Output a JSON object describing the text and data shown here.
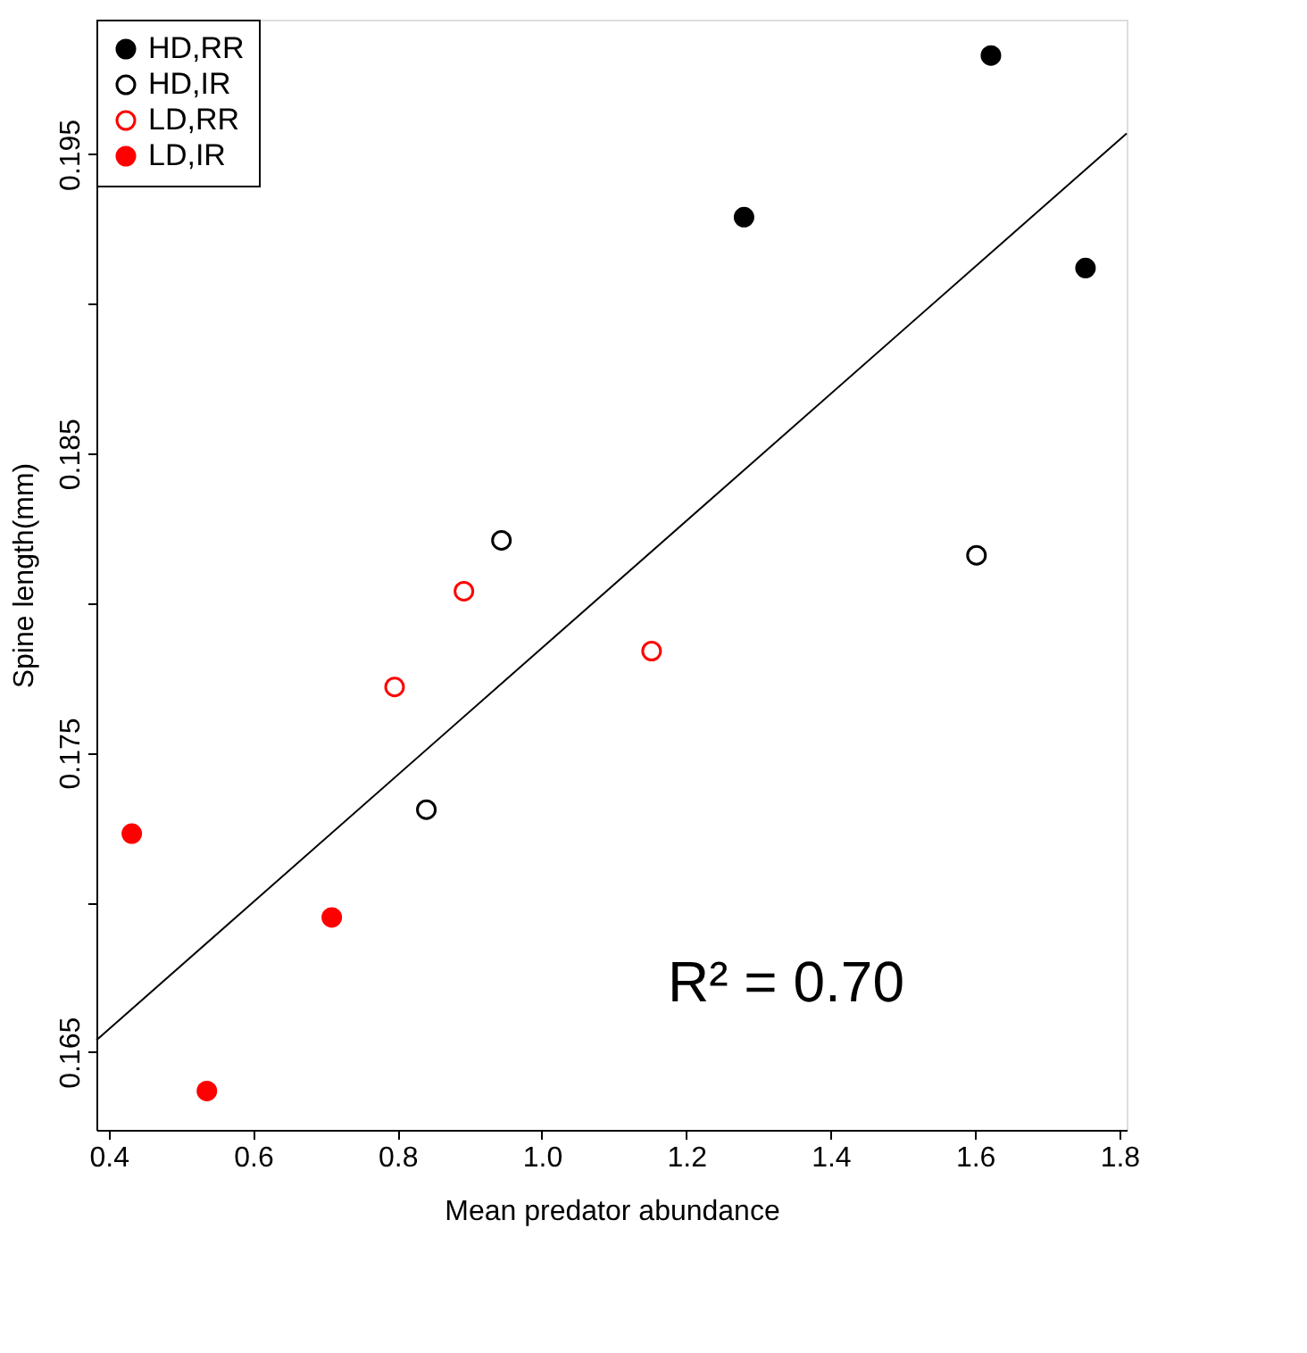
{
  "chart_data": {
    "type": "scatter",
    "xlabel": "Mean predator abundance",
    "ylabel": "Spine length(mm)",
    "xlim": [
      0.383,
      1.81
    ],
    "ylim": [
      0.1624,
      0.1995
    ],
    "xticks": [
      0.4,
      0.6,
      0.8,
      {
        "value": 1.0,
        "label": "1.0"
      },
      1.2,
      1.4,
      1.6,
      1.8
    ],
    "yticks": [
      0.165,
      {
        "value": 0.17,
        "label": null
      },
      0.175,
      {
        "value": 0.18,
        "label": null
      },
      0.185,
      {
        "value": 0.19,
        "label": null
      },
      0.195
    ],
    "grid": false,
    "legend": "top left",
    "marker": "circle",
    "annotations": [
      "R² = 0.70"
    ],
    "series": [
      {
        "name": "HD,RR",
        "color": "#000000",
        "x": [
          1.28,
          1.622,
          1.753
        ],
        "values": [
          0.1929,
          0.1983,
          0.1912
        ]
      },
      {
        "name": "HD,IR",
        "color": "#000000",
        "x": [
          0.944,
          1.602,
          0.84
        ],
        "values": [
          0.1821,
          0.1816,
          0.1731
        ]
      },
      {
        "name": "LD,RR",
        "color": "#ff0000",
        "x": [
          0.892,
          0.796,
          1.152
        ],
        "values": [
          0.1804,
          0.1772,
          0.1784
        ]
      },
      {
        "name": "LD,IR",
        "color": "#ff0000",
        "x": [
          0.432,
          0.709,
          0.536
        ],
        "values": [
          0.1723,
          0.1695,
          0.1637
        ]
      },
      {
        "type": "line",
        "marker": "none",
        "line_style": "solid",
        "color": "#000000",
        "x": [
          0.383,
          1.81
        ],
        "values": [
          0.1654,
          0.1957
        ]
      }
    ]
  }
}
